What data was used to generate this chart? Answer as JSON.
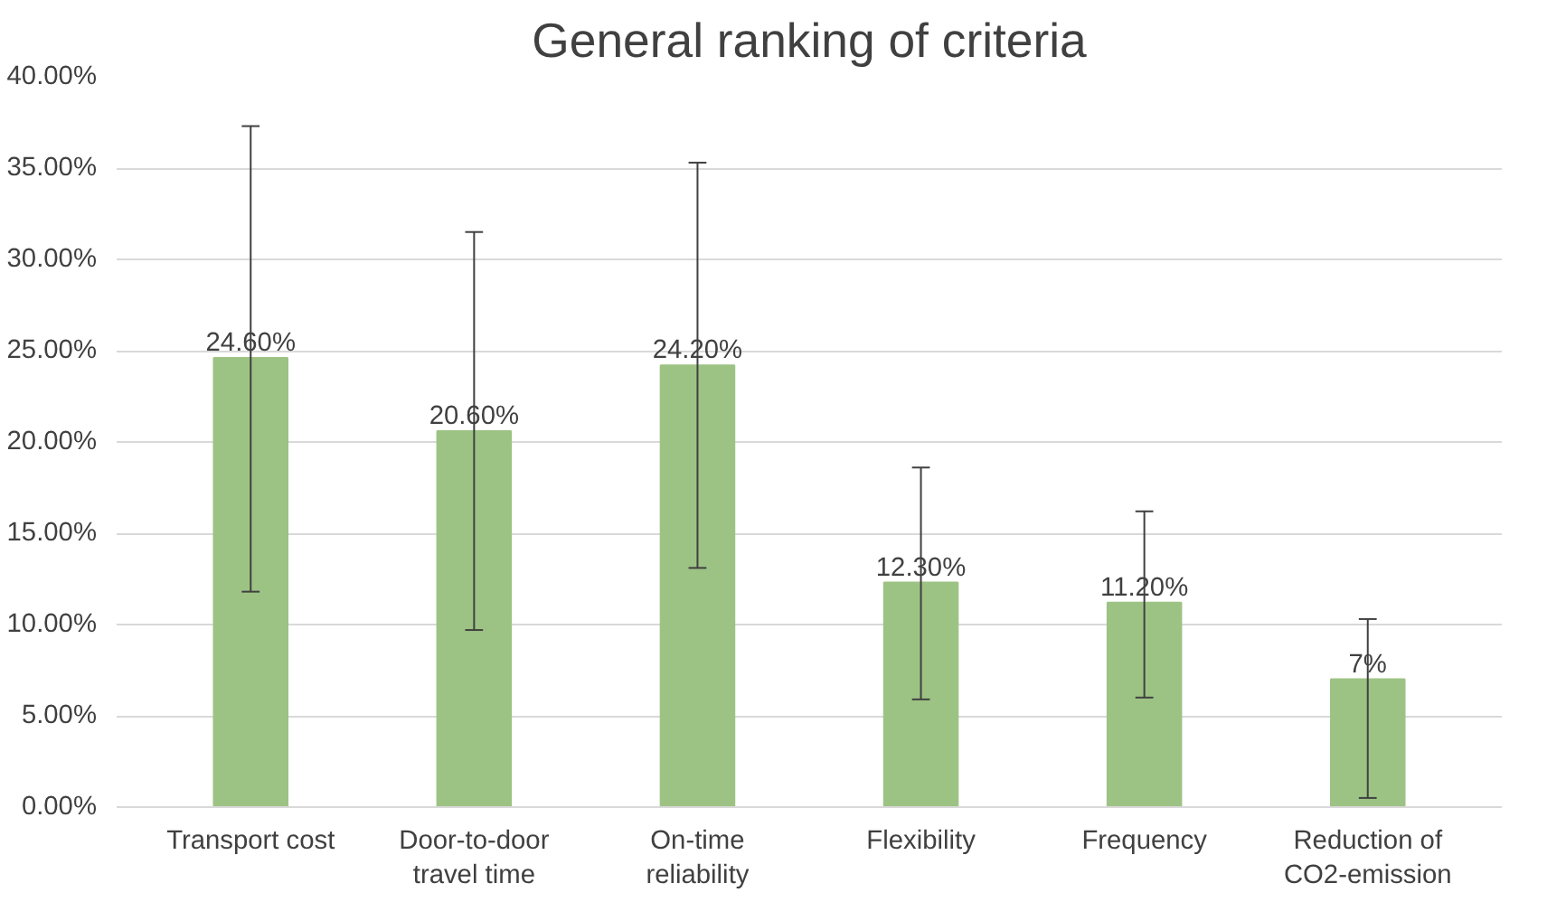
{
  "chart_data": {
    "type": "bar",
    "title": "General ranking of criteria",
    "categories": [
      "Transport cost",
      "Door-to-door\ntravel time",
      "On-time\nreliability",
      "Flexibility",
      "Frequency",
      "Reduction of\nCO2-emission"
    ],
    "values": [
      24.6,
      20.6,
      24.2,
      12.3,
      11.2,
      7
    ],
    "value_labels": [
      "24.60%",
      "20.60%",
      "24.20%",
      "12.30%",
      "11.20%",
      "7%"
    ],
    "errors": [
      [
        11.8,
        37.3
      ],
      [
        9.7,
        31.5
      ],
      [
        13.1,
        35.3
      ],
      [
        5.9,
        18.6
      ],
      [
        6.0,
        16.2
      ],
      [
        0.5,
        10.3
      ]
    ],
    "color": "#9dc384",
    "ylim": [
      0,
      40
    ],
    "yticks": [
      {
        "value": 0,
        "label": "0.00%"
      },
      {
        "value": 5,
        "label": "5.00%"
      },
      {
        "value": 10,
        "label": "10.00%"
      },
      {
        "value": 15,
        "label": "15.00%"
      },
      {
        "value": 20,
        "label": "20.00%"
      },
      {
        "value": 25,
        "label": "25.00%"
      },
      {
        "value": 30,
        "label": "30.00%"
      },
      {
        "value": 35,
        "label": "35.00%"
      },
      {
        "value": 40,
        "label": "40.00%"
      }
    ],
    "grid": "y"
  }
}
